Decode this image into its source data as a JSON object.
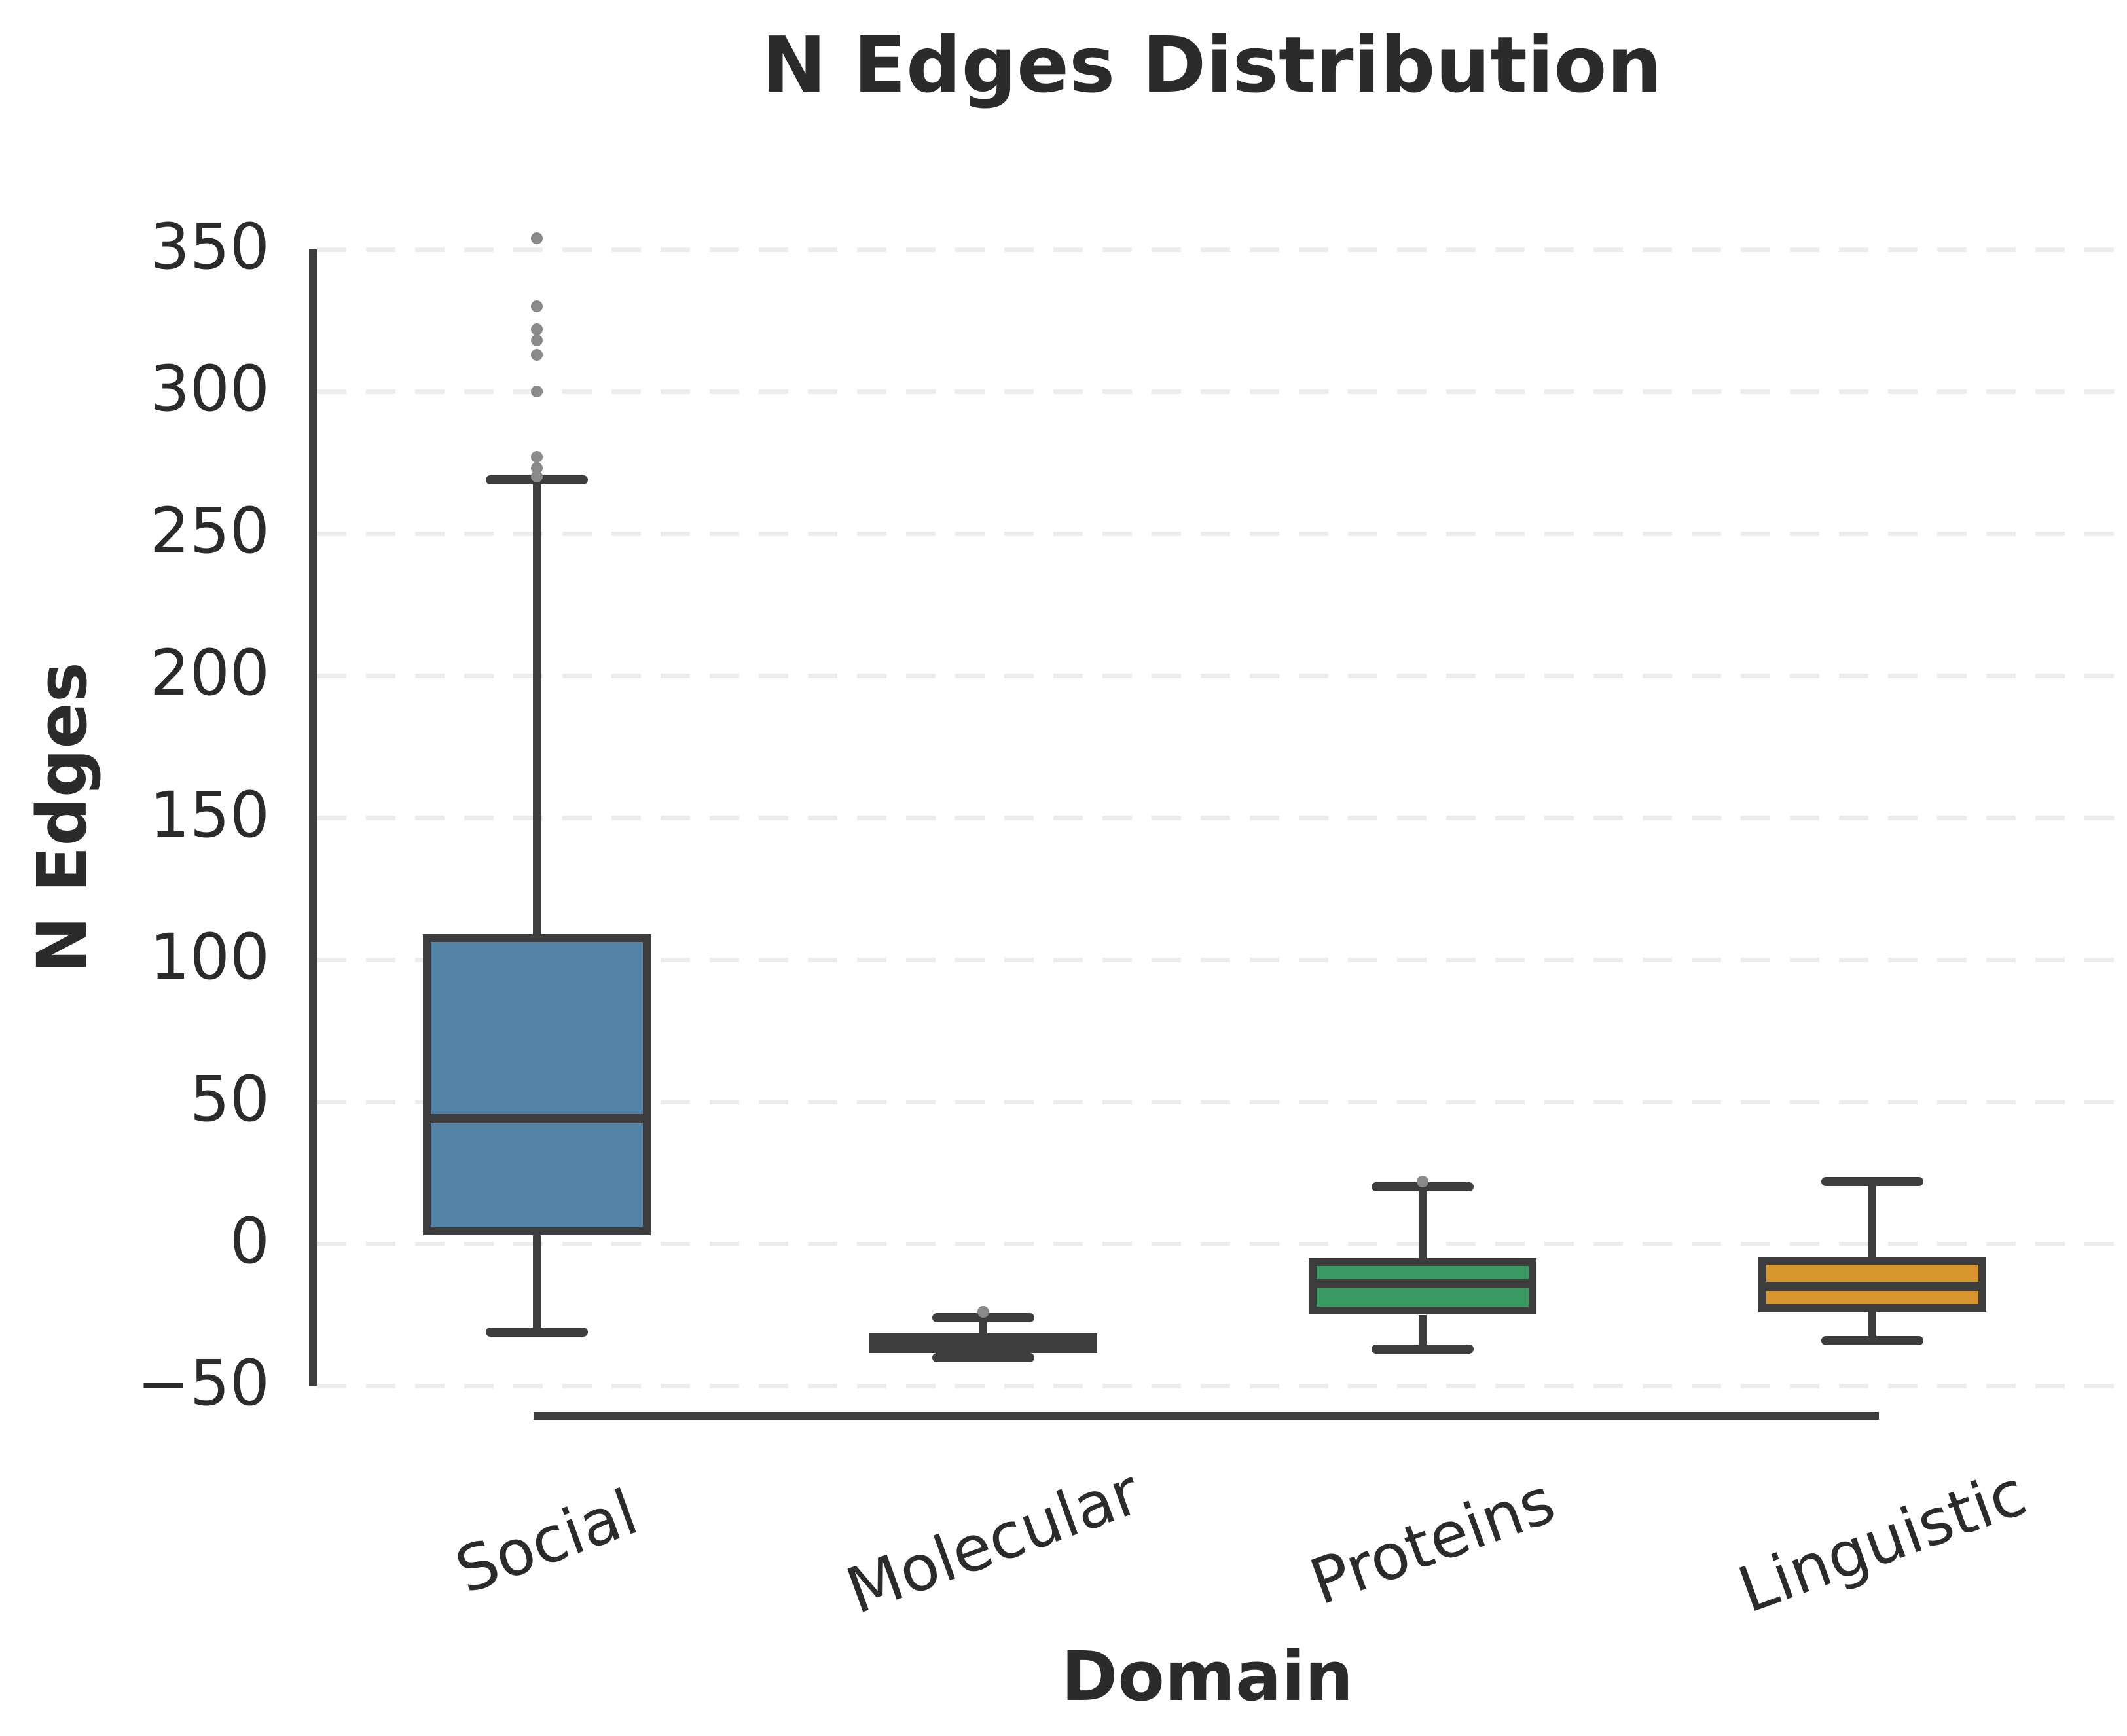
{
  "chart_data": {
    "type": "box",
    "title": "N Edges Distribution",
    "xlabel": "Domain",
    "ylabel": "N Edges",
    "categories": [
      "Social",
      "Molecular",
      "Proteins",
      "Linguistic"
    ],
    "ylim": [
      -50,
      350
    ],
    "yticks": [
      350,
      300,
      250,
      200,
      150,
      100,
      50,
      0,
      -50
    ],
    "ytick_labels": [
      "350",
      "300",
      "250",
      "200",
      "150",
      "100",
      "50",
      "0",
      "−50"
    ],
    "grid": "horizontal dashed gridlines at every y tick",
    "legend": "none",
    "series": [
      {
        "name": "Social",
        "color": "#5483A8",
        "whisker_low": -31,
        "q1": 3,
        "median": 44,
        "q3": 109,
        "whisker_high": 269,
        "outliers": [
          270,
          273,
          277,
          300,
          313,
          318,
          322,
          330,
          354
        ]
      },
      {
        "name": "Molecular",
        "color": "#3D3D3D",
        "whisker_low": -40,
        "q1": -38.5,
        "median": -35,
        "q3": -31.5,
        "whisker_high": -26,
        "outliers": [
          -24
        ]
      },
      {
        "name": "Proteins",
        "color": "#399A62",
        "whisker_low": -37,
        "q1": -25,
        "median": -14,
        "q3": -5,
        "whisker_high": 20,
        "outliers": [
          22
        ]
      },
      {
        "name": "Linguistic",
        "color": "#D8952E",
        "whisker_low": -34,
        "q1": -24,
        "median": -15,
        "q3": -4.5,
        "whisker_high": 22,
        "outliers": []
      }
    ],
    "style": {
      "box_edge_color": "#3D3D3D",
      "outlier_color": "#8A8A8A",
      "grid_color": "#ECECEC",
      "text_color": "#2B2B2B",
      "background": "#FFFFFF"
    }
  }
}
